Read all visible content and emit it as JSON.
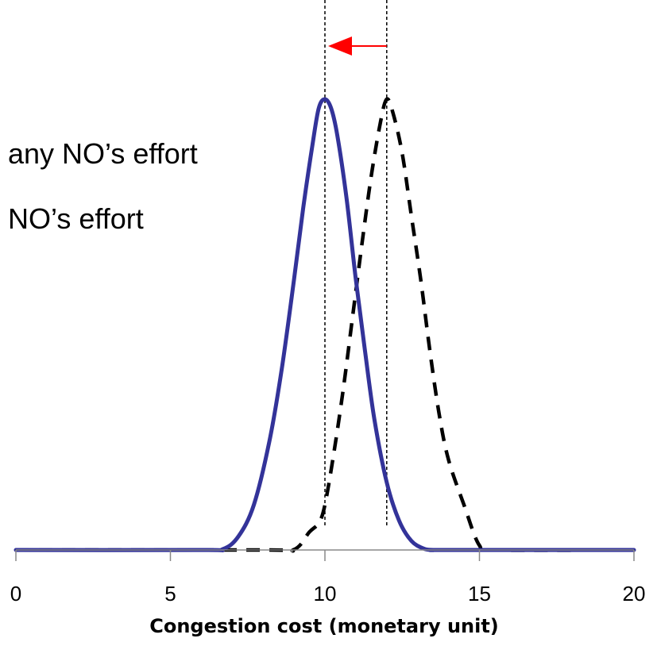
{
  "chart_data": {
    "type": "line",
    "title": "",
    "xlabel": "Congestion cost (monetary unit)",
    "ylabel": "",
    "xlim": [
      0,
      20
    ],
    "ylim": [
      0,
      1.04
    ],
    "x_ticks": [
      0,
      5,
      10,
      15,
      20
    ],
    "legend_position": "upper-left",
    "legend_texts": [
      "any NO’s effort",
      "NO’s effort"
    ],
    "colors": {
      "with_effort": "#333399",
      "without_effort": "#000000",
      "arrow": "#ff0000"
    },
    "series": [
      {
        "style": "solid",
        "peak": 10,
        "x": [
          0,
          6,
          6.7,
          7.2,
          7.7,
          8.2,
          8.6,
          9,
          9.3,
          9.6,
          9.8,
          10,
          10.2,
          10.4,
          10.7,
          11,
          11.3,
          11.6,
          12,
          12.4,
          12.8,
          13.2,
          13.5,
          14,
          20
        ],
        "y": [
          0,
          0,
          0.002,
          0.03,
          0.1,
          0.24,
          0.4,
          0.6,
          0.76,
          0.9,
          0.98,
          1.0,
          0.98,
          0.92,
          0.78,
          0.6,
          0.44,
          0.29,
          0.15,
          0.065,
          0.02,
          0.003,
          0,
          0,
          0
        ]
      },
      {
        "style": "dashed",
        "peak": 12,
        "x": [
          0,
          8,
          9,
          9.5,
          9.8,
          10,
          10.3,
          10.6,
          10.9,
          11.2,
          11.5,
          11.8,
          12,
          12.2,
          12.5,
          12.8,
          13.1,
          13.4,
          13.7,
          14,
          14.5,
          15,
          15.5,
          20
        ],
        "y": [
          0,
          0,
          0.001,
          0.04,
          0.06,
          0.1,
          0.22,
          0.36,
          0.52,
          0.68,
          0.83,
          0.95,
          1.0,
          0.97,
          0.88,
          0.74,
          0.6,
          0.44,
          0.3,
          0.2,
          0.1,
          0.01,
          0,
          0
        ]
      }
    ],
    "guide_lines_x": [
      10,
      12
    ],
    "arrow": {
      "from": 12,
      "to": 10
    }
  }
}
